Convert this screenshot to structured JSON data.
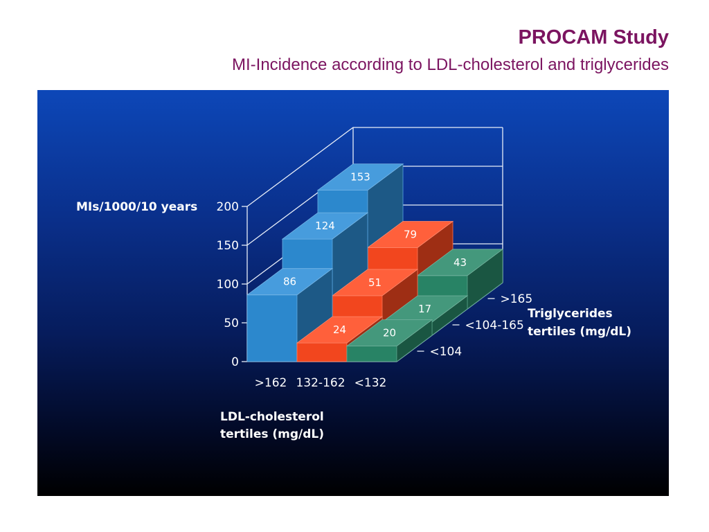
{
  "header": {
    "title": "PROCAM Study",
    "subtitle": "MI-Incidence according to LDL-cholesterol and triglycerides"
  },
  "chart_data": {
    "type": "bar",
    "variant": "3d-stepped-bars",
    "title": "",
    "ylabel": "MIs/1000/10 years",
    "xlabel": "LDL-cholesterol tertiles (mg/dL)",
    "zlabel": "Triglycerides tertiles (mg/dL)",
    "ylim": [
      0,
      200
    ],
    "yticks": [
      0,
      50,
      100,
      150,
      200
    ],
    "ytick_labels": [
      "0",
      "50",
      "100",
      "150",
      "200"
    ],
    "categories": [
      ">162",
      "132-162",
      "<132"
    ],
    "depth_categories": [
      "<104",
      "<104-165",
      ">165"
    ],
    "series": [
      {
        "values": [
          86,
          24,
          20
        ]
      },
      {
        "values": [
          124,
          51,
          17
        ]
      },
      {
        "values": [
          153,
          79,
          43
        ]
      }
    ],
    "colors": {
      "ldl_high": "#2e8fd8",
      "ldl_mid": "#ff4a20",
      "ldl_low": "#2a8a6a"
    },
    "grid": true
  }
}
